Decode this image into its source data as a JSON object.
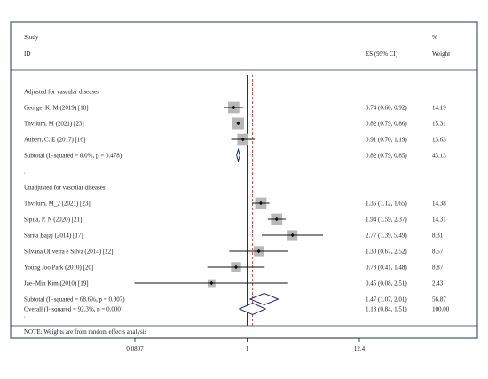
{
  "chart_data": {
    "type": "forest",
    "title": "",
    "header": {
      "study_line1": "Study",
      "study_line2": "ID",
      "es_label": "ES (95% CI)",
      "weight_line1": "%",
      "weight_line2": "Weight"
    },
    "x_axis": {
      "scale": "log",
      "ticks": [
        "0.0807",
        "1",
        "12.4"
      ],
      "tick_values": [
        0.0807,
        1,
        12.4
      ],
      "xlim": [
        0.0807,
        12.4
      ]
    },
    "overall_effect_line": 1.13,
    "rows": [
      {
        "kind": "group",
        "label": "Adjusted for vascular diseases"
      },
      {
        "kind": "study",
        "label": "George, K. M (2019) [18]",
        "es": 0.74,
        "lo": 0.6,
        "hi": 0.92,
        "es_text": "0.74 (0.60, 0.92)",
        "weight": "14.19"
      },
      {
        "kind": "study",
        "label": "Thvilum, M (2021) [23]",
        "es": 0.82,
        "lo": 0.79,
        "hi": 0.86,
        "es_text": "0.82 (0.79, 0.86)",
        "weight": "15.31"
      },
      {
        "kind": "study",
        "label": "Aubert, C. E (2017) [16]",
        "es": 0.91,
        "lo": 0.7,
        "hi": 1.19,
        "es_text": "0.91 (0.70, 1.19)",
        "weight": "13.63"
      },
      {
        "kind": "subtotal",
        "label": "Subtotal  (I−squared = 0.0%, p = 0.478)",
        "es": 0.82,
        "lo": 0.79,
        "hi": 0.85,
        "es_text": "0.82 (0.79, 0.85)",
        "weight": "43.13"
      },
      {
        "kind": "text",
        "label": "."
      },
      {
        "kind": "group",
        "label": "Unadjusted for vascular diseases"
      },
      {
        "kind": "study",
        "label": "Thvilum, M_2 (2021) [23]",
        "es": 1.36,
        "lo": 1.12,
        "hi": 1.65,
        "es_text": "1.36 (1.12, 1.65)",
        "weight": "14.38"
      },
      {
        "kind": "study",
        "label": "Sipilä, P. N (2020) [21]",
        "es": 1.94,
        "lo": 1.59,
        "hi": 2.37,
        "es_text": "1.94 (1.59, 2.37)",
        "weight": "14.31"
      },
      {
        "kind": "study",
        "label": "Sarita Bajaj (2014) [17]",
        "es": 2.77,
        "lo": 1.39,
        "hi": 5.49,
        "es_text": "2.77 (1.39, 5.49)",
        "weight": "8.31"
      },
      {
        "kind": "study",
        "label": "Silvana Oliveira e Silva (2014) [22]",
        "es": 1.3,
        "lo": 0.67,
        "hi": 2.52,
        "es_text": "1.30 (0.67, 2.52)",
        "weight": "8.57"
      },
      {
        "kind": "study",
        "label": "Young Joo Park (2010) [20]",
        "es": 0.78,
        "lo": 0.41,
        "hi": 1.48,
        "es_text": "0.78 (0.41, 1.48)",
        "weight": "8.87"
      },
      {
        "kind": "study",
        "label": "Jae−Min Kim (2010) [19]",
        "es": 0.45,
        "lo": 0.08,
        "hi": 2.51,
        "es_text": "0.45 (0.08, 2.51)",
        "weight": "2.43"
      },
      {
        "kind": "subtotal",
        "label": "Subtotal  (I−squared = 68.6%, p = 0.007)",
        "es": 1.47,
        "lo": 1.07,
        "hi": 2.01,
        "es_text": "1.47 (1.07, 2.01)",
        "weight": "56.87"
      },
      {
        "kind": "text",
        "label": "."
      },
      {
        "kind": "overall",
        "label": "Overall  (I−squared = 92.3%, p = 0.000)",
        "es": 1.13,
        "lo": 0.84,
        "hi": 1.51,
        "es_text": "1.13 (0.84, 1.51)",
        "weight": "100.00"
      }
    ],
    "note": "NOTE: Weights are from random effects analysis",
    "colors": {
      "frame": "#1f3b57",
      "box": "#b8b8b8",
      "diamond": "#1c2c7a",
      "ref_line": "#c0392b",
      "text": "#1a1a1a"
    }
  }
}
